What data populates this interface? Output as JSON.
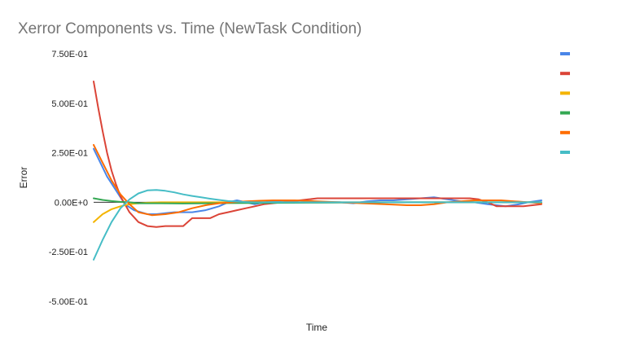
{
  "chart_data": {
    "type": "line",
    "title": "Xerror Components vs. Time (NewTask Condition)",
    "xlabel": "Time",
    "ylabel": "Error",
    "ylim": [
      -0.5,
      0.75
    ],
    "xlim": [
      0,
      100
    ],
    "yticks": [
      "7.50E-01",
      "5.00E-01",
      "2.50E-01",
      "0.00E+0",
      "-2.50E-01",
      "-5.00E-01"
    ],
    "ytick_values": [
      0.75,
      0.5,
      0.25,
      0.0,
      -0.25,
      -0.5
    ],
    "grid": false,
    "legend_position": "right",
    "series": [
      {
        "name": "",
        "color": "#4a86e8",
        "x": [
          0,
          3,
          5,
          7,
          9,
          12,
          14,
          16,
          18,
          20,
          22,
          25,
          28,
          30,
          32,
          34,
          36,
          38,
          40,
          43,
          46,
          49,
          52,
          55,
          58,
          61,
          64,
          67,
          70,
          73,
          76,
          79,
          82,
          85,
          88,
          90,
          92,
          95,
          97,
          100
        ],
        "y": [
          0.27,
          0.13,
          0.06,
          -0.01,
          -0.04,
          -0.06,
          -0.06,
          -0.055,
          -0.05,
          -0.05,
          -0.05,
          -0.04,
          -0.02,
          0.0,
          0.01,
          0.0,
          -0.01,
          0.0,
          0.005,
          0.01,
          0.0,
          0.005,
          0.0,
          0.0,
          -0.005,
          0.005,
          0.01,
          0.01,
          0.015,
          0.02,
          0.025,
          0.015,
          0.005,
          0.0,
          -0.01,
          -0.015,
          -0.02,
          -0.01,
          0.0,
          0.01
        ]
      },
      {
        "name": "",
        "color": "#db4437",
        "x": [
          0,
          1,
          2,
          3,
          4,
          5,
          6,
          7,
          8,
          10,
          12,
          14,
          16,
          18,
          20,
          22,
          24,
          26,
          28,
          30,
          32,
          34,
          36,
          38,
          40,
          42,
          44,
          46,
          48,
          50,
          55,
          60,
          65,
          70,
          75,
          80,
          84,
          86,
          88,
          90,
          92,
          94,
          96,
          98,
          100
        ],
        "y": [
          0.61,
          0.48,
          0.36,
          0.25,
          0.16,
          0.09,
          0.03,
          -0.01,
          -0.05,
          -0.1,
          -0.12,
          -0.125,
          -0.12,
          -0.12,
          -0.12,
          -0.08,
          -0.08,
          -0.08,
          -0.06,
          -0.05,
          -0.04,
          -0.03,
          -0.02,
          -0.01,
          -0.005,
          0.0,
          0.005,
          0.01,
          0.015,
          0.02,
          0.02,
          0.02,
          0.02,
          0.02,
          0.02,
          0.02,
          0.02,
          0.015,
          0.0,
          -0.02,
          -0.02,
          -0.02,
          -0.02,
          -0.015,
          -0.01
        ]
      },
      {
        "name": "",
        "color": "#f4b400",
        "x": [
          0,
          2,
          4,
          6,
          8,
          10,
          12,
          15,
          20,
          25,
          30,
          40,
          50,
          60,
          70,
          80,
          90,
          100
        ],
        "y": [
          -0.1,
          -0.06,
          -0.035,
          -0.02,
          -0.01,
          -0.005,
          -0.002,
          0.0,
          0.0,
          0.0,
          0.0,
          0.0,
          0.0,
          0.0,
          0.0,
          0.0,
          0.0,
          0.0
        ]
      },
      {
        "name": "",
        "color": "#34a853",
        "x": [
          0,
          2,
          4,
          6,
          8,
          10,
          15,
          20,
          25,
          30,
          40,
          50,
          60,
          70,
          80,
          90,
          100
        ],
        "y": [
          0.02,
          0.012,
          0.006,
          0.002,
          0.0,
          -0.005,
          -0.005,
          -0.006,
          -0.005,
          -0.004,
          -0.003,
          -0.002,
          -0.001,
          0.0,
          0.0,
          0.0,
          0.0
        ]
      },
      {
        "name": "",
        "color": "#ff6d01",
        "x": [
          0,
          2,
          4,
          6,
          8,
          10,
          13,
          16,
          19,
          22,
          25,
          28,
          31,
          34,
          37,
          40,
          45,
          50,
          55,
          60,
          65,
          70,
          73,
          76,
          79,
          82,
          85,
          88,
          91,
          94,
          97,
          100
        ],
        "y": [
          0.29,
          0.2,
          0.11,
          0.04,
          -0.01,
          -0.05,
          -0.065,
          -0.06,
          -0.05,
          -0.03,
          -0.015,
          -0.005,
          0.0,
          0.005,
          0.008,
          0.01,
          0.01,
          0.005,
          0.0,
          -0.005,
          -0.01,
          -0.015,
          -0.015,
          -0.01,
          0.0,
          0.005,
          0.01,
          0.01,
          0.01,
          0.005,
          0.0,
          -0.005
        ]
      },
      {
        "name": "",
        "color": "#46bdc6",
        "x": [
          0,
          2,
          4,
          6,
          8,
          10,
          12,
          14,
          16,
          18,
          20,
          22,
          24,
          26,
          28,
          30,
          33,
          36,
          40,
          45,
          50,
          60,
          70,
          80,
          90,
          100
        ],
        "y": [
          -0.29,
          -0.19,
          -0.1,
          -0.03,
          0.015,
          0.045,
          0.06,
          0.062,
          0.058,
          0.05,
          0.04,
          0.032,
          0.025,
          0.018,
          0.012,
          0.006,
          0.002,
          0.0,
          0.0,
          0.0,
          0.0,
          0.0,
          0.0,
          0.0,
          0.0,
          0.0
        ]
      }
    ]
  }
}
